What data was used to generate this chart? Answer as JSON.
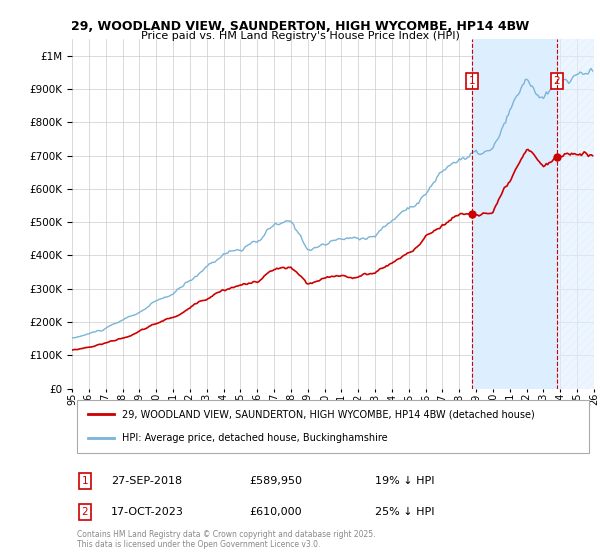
{
  "title": "29, WOODLAND VIEW, SAUNDERTON, HIGH WYCOMBE, HP14 4BW",
  "subtitle": "Price paid vs. HM Land Registry's House Price Index (HPI)",
  "ytick_values": [
    0,
    100000,
    200000,
    300000,
    400000,
    500000,
    600000,
    700000,
    800000,
    900000,
    1000000
  ],
  "ylim": [
    0,
    1050000
  ],
  "hpi_color": "#7ab4d8",
  "property_color": "#cc0000",
  "sale1_date_label": "27-SEP-2018",
  "sale1_price": 589950,
  "sale1_note": "19% ↓ HPI",
  "sale2_date_label": "17-OCT-2023",
  "sale2_price": 610000,
  "sale2_note": "25% ↓ HPI",
  "sale1_x": 2018.75,
  "sale2_x": 2023.79,
  "legend_label_property": "29, WOODLAND VIEW, SAUNDERTON, HIGH WYCOMBE, HP14 4BW (detached house)",
  "legend_label_hpi": "HPI: Average price, detached house, Buckinghamshire",
  "footer": "Contains HM Land Registry data © Crown copyright and database right 2025.\nThis data is licensed under the Open Government Licence v3.0.",
  "background_color": "#ffffff",
  "grid_color": "#cccccc",
  "xmin": 1995,
  "xmax": 2026,
  "shade_color": "#ddeeff",
  "hatch_color": "#ccddee"
}
